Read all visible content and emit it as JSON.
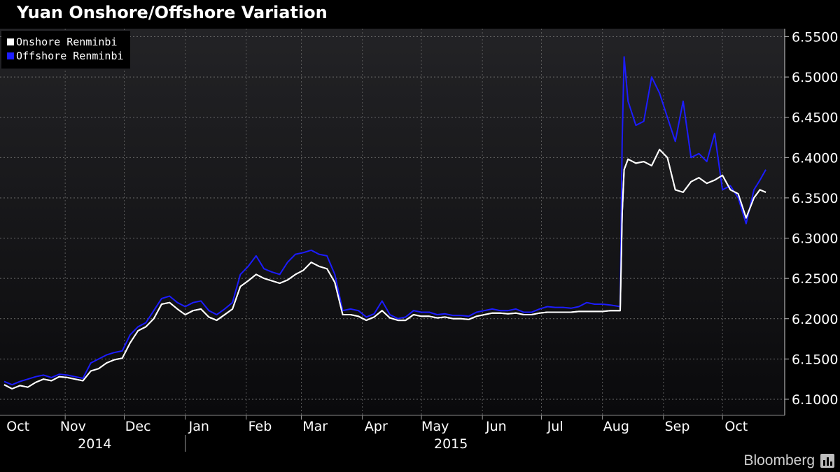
{
  "title": "Yuan Onshore/Offshore Variation",
  "brand": "Bloomberg",
  "brand_icon": "bar-chart-icon",
  "chart_data": {
    "type": "line",
    "title": "Yuan Onshore/Offshore Variation",
    "xlabel": "",
    "ylabel": "",
    "x_start": "2014-10-01",
    "x_end": "2015-10-23",
    "ylim": [
      6.08,
      6.56
    ],
    "y_ticks": [
      "6.1000",
      "6.1500",
      "6.2000",
      "6.2500",
      "6.3000",
      "6.3500",
      "6.4000",
      "6.4500",
      "6.5000",
      "6.5500"
    ],
    "x_month_labels": [
      {
        "label": "Oct",
        "date": "2014-10-08"
      },
      {
        "label": "Nov",
        "date": "2014-11-05"
      },
      {
        "label": "Dec",
        "date": "2014-12-08"
      },
      {
        "label": "Jan",
        "date": "2015-01-08"
      },
      {
        "label": "Feb",
        "date": "2015-02-08"
      },
      {
        "label": "Mar",
        "date": "2015-03-08"
      },
      {
        "label": "Apr",
        "date": "2015-04-08"
      },
      {
        "label": "May",
        "date": "2015-05-08"
      },
      {
        "label": "Jun",
        "date": "2015-06-08"
      },
      {
        "label": "Jul",
        "date": "2015-07-08"
      },
      {
        "label": "Aug",
        "date": "2015-08-08"
      },
      {
        "label": "Sep",
        "date": "2015-09-08"
      },
      {
        "label": "Oct",
        "date": "2015-10-08"
      }
    ],
    "x_month_boundaries": [
      "2014-11-01",
      "2014-12-01",
      "2015-01-01",
      "2015-02-01",
      "2015-03-01",
      "2015-04-01",
      "2015-05-01",
      "2015-06-01",
      "2015-07-01",
      "2015-08-01",
      "2015-09-01",
      "2015-10-01"
    ],
    "x_year_labels": [
      {
        "label": "2014",
        "date": "2014-11-16"
      },
      {
        "label": "2015",
        "date": "2015-05-16"
      }
    ],
    "year_divider": "2015-01-01",
    "grid": true,
    "legend_position": "top-left",
    "series": [
      {
        "name": "Onshore Renminbi",
        "color": "#ffffff",
        "points": [
          [
            "2014-10-01",
            6.118
          ],
          [
            "2014-10-05",
            6.113
          ],
          [
            "2014-10-09",
            6.117
          ],
          [
            "2014-10-13",
            6.115
          ],
          [
            "2014-10-17",
            6.121
          ],
          [
            "2014-10-21",
            6.125
          ],
          [
            "2014-10-25",
            6.123
          ],
          [
            "2014-10-29",
            6.128
          ],
          [
            "2014-11-02",
            6.127
          ],
          [
            "2014-11-06",
            6.125
          ],
          [
            "2014-11-10",
            6.123
          ],
          [
            "2014-11-14",
            6.135
          ],
          [
            "2014-11-18",
            6.138
          ],
          [
            "2014-11-22",
            6.145
          ],
          [
            "2014-11-26",
            6.149
          ],
          [
            "2014-11-30",
            6.151
          ],
          [
            "2014-12-04",
            6.17
          ],
          [
            "2014-12-08",
            6.185
          ],
          [
            "2014-12-12",
            6.19
          ],
          [
            "2014-12-16",
            6.2
          ],
          [
            "2014-12-20",
            6.218
          ],
          [
            "2014-12-24",
            6.22
          ],
          [
            "2014-12-28",
            6.212
          ],
          [
            "2015-01-01",
            6.205
          ],
          [
            "2015-01-05",
            6.21
          ],
          [
            "2015-01-09",
            6.212
          ],
          [
            "2015-01-13",
            6.202
          ],
          [
            "2015-01-17",
            6.198
          ],
          [
            "2015-01-21",
            6.205
          ],
          [
            "2015-01-25",
            6.212
          ],
          [
            "2015-01-29",
            6.24
          ],
          [
            "2015-02-02",
            6.247
          ],
          [
            "2015-02-06",
            6.255
          ],
          [
            "2015-02-10",
            6.25
          ],
          [
            "2015-02-14",
            6.247
          ],
          [
            "2015-02-18",
            6.244
          ],
          [
            "2015-02-22",
            6.248
          ],
          [
            "2015-02-26",
            6.255
          ],
          [
            "2015-03-02",
            6.26
          ],
          [
            "2015-03-06",
            6.27
          ],
          [
            "2015-03-10",
            6.265
          ],
          [
            "2015-03-14",
            6.262
          ],
          [
            "2015-03-18",
            6.245
          ],
          [
            "2015-03-22",
            6.205
          ],
          [
            "2015-03-26",
            6.205
          ],
          [
            "2015-03-30",
            6.203
          ],
          [
            "2015-04-03",
            6.198
          ],
          [
            "2015-04-07",
            6.202
          ],
          [
            "2015-04-11",
            6.21
          ],
          [
            "2015-04-15",
            6.201
          ],
          [
            "2015-04-19",
            6.198
          ],
          [
            "2015-04-23",
            6.198
          ],
          [
            "2015-04-27",
            6.205
          ],
          [
            "2015-05-01",
            6.203
          ],
          [
            "2015-05-05",
            6.203
          ],
          [
            "2015-05-09",
            6.201
          ],
          [
            "2015-05-13",
            6.202
          ],
          [
            "2015-05-17",
            6.2
          ],
          [
            "2015-05-21",
            6.2
          ],
          [
            "2015-05-25",
            6.199
          ],
          [
            "2015-05-29",
            6.203
          ],
          [
            "2015-06-02",
            6.205
          ],
          [
            "2015-06-06",
            6.207
          ],
          [
            "2015-06-10",
            6.207
          ],
          [
            "2015-06-14",
            6.206
          ],
          [
            "2015-06-18",
            6.207
          ],
          [
            "2015-06-22",
            6.205
          ],
          [
            "2015-06-26",
            6.205
          ],
          [
            "2015-06-30",
            6.207
          ],
          [
            "2015-07-04",
            6.208
          ],
          [
            "2015-07-08",
            6.208
          ],
          [
            "2015-07-12",
            6.208
          ],
          [
            "2015-07-16",
            6.208
          ],
          [
            "2015-07-20",
            6.209
          ],
          [
            "2015-07-24",
            6.209
          ],
          [
            "2015-07-28",
            6.209
          ],
          [
            "2015-08-01",
            6.209
          ],
          [
            "2015-08-05",
            6.21
          ],
          [
            "2015-08-10",
            6.21
          ],
          [
            "2015-08-11",
            6.33
          ],
          [
            "2015-08-12",
            6.385
          ],
          [
            "2015-08-14",
            6.398
          ],
          [
            "2015-08-18",
            6.393
          ],
          [
            "2015-08-22",
            6.395
          ],
          [
            "2015-08-26",
            6.39
          ],
          [
            "2015-08-30",
            6.41
          ],
          [
            "2015-09-03",
            6.4
          ],
          [
            "2015-09-07",
            6.36
          ],
          [
            "2015-09-11",
            6.357
          ],
          [
            "2015-09-15",
            6.37
          ],
          [
            "2015-09-19",
            6.375
          ],
          [
            "2015-09-23",
            6.368
          ],
          [
            "2015-09-27",
            6.372
          ],
          [
            "2015-10-01",
            6.378
          ],
          [
            "2015-10-05",
            6.36
          ],
          [
            "2015-10-09",
            6.355
          ],
          [
            "2015-10-13",
            6.325
          ],
          [
            "2015-10-17",
            6.35
          ],
          [
            "2015-10-20",
            6.36
          ],
          [
            "2015-10-23",
            6.357
          ]
        ]
      },
      {
        "name": "Offshore Renminbi",
        "color": "#1c1cff",
        "points": [
          [
            "2014-10-01",
            6.122
          ],
          [
            "2014-10-05",
            6.118
          ],
          [
            "2014-10-09",
            6.122
          ],
          [
            "2014-10-13",
            6.125
          ],
          [
            "2014-10-17",
            6.128
          ],
          [
            "2014-10-21",
            6.13
          ],
          [
            "2014-10-25",
            6.127
          ],
          [
            "2014-10-29",
            6.131
          ],
          [
            "2014-11-02",
            6.13
          ],
          [
            "2014-11-06",
            6.128
          ],
          [
            "2014-11-10",
            6.126
          ],
          [
            "2014-11-14",
            6.145
          ],
          [
            "2014-11-18",
            6.15
          ],
          [
            "2014-11-22",
            6.155
          ],
          [
            "2014-11-26",
            6.158
          ],
          [
            "2014-11-30",
            6.16
          ],
          [
            "2014-12-04",
            6.18
          ],
          [
            "2014-12-08",
            6.19
          ],
          [
            "2014-12-12",
            6.195
          ],
          [
            "2014-12-16",
            6.21
          ],
          [
            "2014-12-20",
            6.225
          ],
          [
            "2014-12-24",
            6.228
          ],
          [
            "2014-12-28",
            6.22
          ],
          [
            "2015-01-01",
            6.215
          ],
          [
            "2015-01-05",
            6.22
          ],
          [
            "2015-01-09",
            6.222
          ],
          [
            "2015-01-13",
            6.21
          ],
          [
            "2015-01-17",
            6.205
          ],
          [
            "2015-01-21",
            6.212
          ],
          [
            "2015-01-25",
            6.22
          ],
          [
            "2015-01-29",
            6.255
          ],
          [
            "2015-02-02",
            6.265
          ],
          [
            "2015-02-06",
            6.278
          ],
          [
            "2015-02-10",
            6.262
          ],
          [
            "2015-02-14",
            6.258
          ],
          [
            "2015-02-18",
            6.255
          ],
          [
            "2015-02-22",
            6.27
          ],
          [
            "2015-02-26",
            6.28
          ],
          [
            "2015-03-02",
            6.282
          ],
          [
            "2015-03-06",
            6.285
          ],
          [
            "2015-03-10",
            6.28
          ],
          [
            "2015-03-14",
            6.278
          ],
          [
            "2015-03-18",
            6.255
          ],
          [
            "2015-03-22",
            6.21
          ],
          [
            "2015-03-26",
            6.212
          ],
          [
            "2015-03-30",
            6.21
          ],
          [
            "2015-04-03",
            6.202
          ],
          [
            "2015-04-07",
            6.206
          ],
          [
            "2015-04-11",
            6.222
          ],
          [
            "2015-04-15",
            6.205
          ],
          [
            "2015-04-19",
            6.2
          ],
          [
            "2015-04-23",
            6.202
          ],
          [
            "2015-04-27",
            6.21
          ],
          [
            "2015-05-01",
            6.208
          ],
          [
            "2015-05-05",
            6.208
          ],
          [
            "2015-05-09",
            6.205
          ],
          [
            "2015-05-13",
            6.206
          ],
          [
            "2015-05-17",
            6.204
          ],
          [
            "2015-05-21",
            6.204
          ],
          [
            "2015-05-25",
            6.203
          ],
          [
            "2015-05-29",
            6.208
          ],
          [
            "2015-06-02",
            6.21
          ],
          [
            "2015-06-06",
            6.212
          ],
          [
            "2015-06-10",
            6.21
          ],
          [
            "2015-06-14",
            6.21
          ],
          [
            "2015-06-18",
            6.212
          ],
          [
            "2015-06-22",
            6.208
          ],
          [
            "2015-06-26",
            6.208
          ],
          [
            "2015-06-30",
            6.212
          ],
          [
            "2015-07-04",
            6.215
          ],
          [
            "2015-07-08",
            6.214
          ],
          [
            "2015-07-12",
            6.214
          ],
          [
            "2015-07-16",
            6.213
          ],
          [
            "2015-07-20",
            6.215
          ],
          [
            "2015-07-24",
            6.22
          ],
          [
            "2015-07-28",
            6.218
          ],
          [
            "2015-08-01",
            6.218
          ],
          [
            "2015-08-05",
            6.217
          ],
          [
            "2015-08-10",
            6.215
          ],
          [
            "2015-08-11",
            6.42
          ],
          [
            "2015-08-12",
            6.525
          ],
          [
            "2015-08-14",
            6.47
          ],
          [
            "2015-08-18",
            6.44
          ],
          [
            "2015-08-22",
            6.445
          ],
          [
            "2015-08-26",
            6.5
          ],
          [
            "2015-08-30",
            6.48
          ],
          [
            "2015-09-03",
            6.45
          ],
          [
            "2015-09-07",
            6.42
          ],
          [
            "2015-09-11",
            6.47
          ],
          [
            "2015-09-15",
            6.4
          ],
          [
            "2015-09-19",
            6.405
          ],
          [
            "2015-09-23",
            6.395
          ],
          [
            "2015-09-27",
            6.43
          ],
          [
            "2015-10-01",
            6.36
          ],
          [
            "2015-10-05",
            6.365
          ],
          [
            "2015-10-09",
            6.35
          ],
          [
            "2015-10-13",
            6.318
          ],
          [
            "2015-10-17",
            6.36
          ],
          [
            "2015-10-20",
            6.372
          ],
          [
            "2015-10-23",
            6.385
          ]
        ]
      }
    ]
  }
}
